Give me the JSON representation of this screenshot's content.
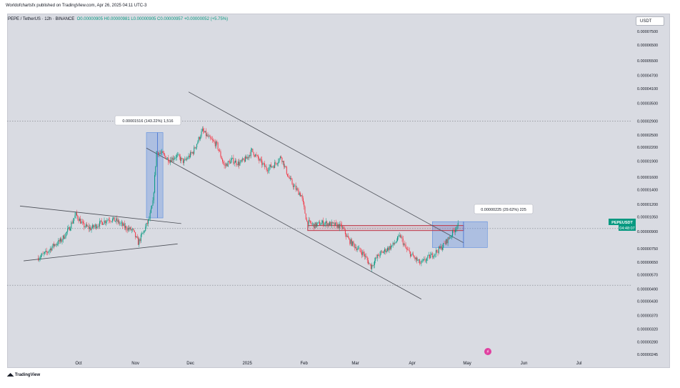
{
  "header": {
    "published": "Worldofchartsfx published on TradingView.com, Apr 26, 2025 04:11 UTC-3",
    "symbol": "PEPE / TetherUS · 12h · BINANCE",
    "ohlc": "O0.00000905 H0.00000981 L0.00000905 C0.00000957 +0.00000052 (+5.75%)"
  },
  "currency_button": "USDT",
  "footer": {
    "logo_text": "TradingView"
  },
  "colors": {
    "up": "#089981",
    "down": "#f23645",
    "background": "#d9dbe2",
    "accent": "#089981"
  },
  "chart_data": {
    "type": "candlestick",
    "symbol": "PEPEUSDT",
    "timeframe": "12h",
    "exchange": "BINANCE",
    "y_scale": "log",
    "y_ticks": [
      "0.00007500",
      "0.00006500",
      "0.00005500",
      "0.00004700",
      "0.00004100",
      "0.00003500",
      "0.00002900",
      "0.00002500",
      "0.00002200",
      "0.00001900",
      "0.00001600",
      "0.00001400",
      "0.00001200",
      "0.00001050",
      "0.00000900",
      "0.00000750",
      "0.00000650",
      "0.00000570",
      "0.00000490",
      "0.00000430",
      "0.00000370",
      "0.00000320",
      "0.00000280",
      "0.00000245"
    ],
    "x_ticks": [
      "Oct",
      "Nov",
      "Dec",
      "2025",
      "Feb",
      "Mar",
      "Apr",
      "May",
      "Jun",
      "Jul"
    ],
    "last_price_label": "PEPEUSDT",
    "countdown_label": "04:48:07",
    "annotations": [
      {
        "text": "0.00001516 (143.22%) 1,516",
        "type": "price-range"
      },
      {
        "text": "0.00000225 (29.62%) 225",
        "type": "price-range"
      }
    ],
    "path": [
      [
        "2024-09-09",
        6.8e-06
      ],
      [
        "2024-09-14",
        7.2e-06
      ],
      [
        "2024-09-18",
        7.8e-06
      ],
      [
        "2024-09-22",
        8.2e-06
      ],
      [
        "2024-09-26",
        9.2e-06
      ],
      [
        "2024-09-30",
        1.08e-05
      ],
      [
        "2024-10-04",
        9.6e-06
      ],
      [
        "2024-10-08",
        9.3e-06
      ],
      [
        "2024-10-13",
        9.8e-06
      ],
      [
        "2024-10-18",
        1.03e-05
      ],
      [
        "2024-10-22",
        1.01e-05
      ],
      [
        "2024-10-27",
        9.4e-06
      ],
      [
        "2024-10-31",
        9.1e-06
      ],
      [
        "2024-11-03",
        8e-06
      ],
      [
        "2024-11-06",
        9e-06
      ],
      [
        "2024-11-09",
        1.03e-05
      ],
      [
        "2024-11-11",
        1.22e-05
      ],
      [
        "2024-11-13",
        2.1e-05
      ],
      [
        "2024-11-16",
        2.05e-05
      ],
      [
        "2024-11-20",
        1.92e-05
      ],
      [
        "2024-11-24",
        2.01e-05
      ],
      [
        "2024-11-28",
        1.88e-05
      ],
      [
        "2024-12-03",
        2.1e-05
      ],
      [
        "2024-12-08",
        2.62e-05
      ],
      [
        "2024-12-12",
        2.4e-05
      ],
      [
        "2024-12-16",
        2.25e-05
      ],
      [
        "2024-12-20",
        1.8e-05
      ],
      [
        "2024-12-24",
        1.92e-05
      ],
      [
        "2024-12-28",
        1.85e-05
      ],
      [
        "2025-01-01",
        1.95e-05
      ],
      [
        "2025-01-04",
        2.12e-05
      ],
      [
        "2025-01-08",
        1.92e-05
      ],
      [
        "2025-01-12",
        1.75e-05
      ],
      [
        "2025-01-16",
        1.82e-05
      ],
      [
        "2025-01-20",
        1.99e-05
      ],
      [
        "2025-01-24",
        1.6e-05
      ],
      [
        "2025-01-27",
        1.45e-05
      ],
      [
        "2025-01-31",
        1.32e-05
      ],
      [
        "2025-02-03",
        1e-05
      ],
      [
        "2025-02-07",
        9.6e-06
      ],
      [
        "2025-02-12",
        9.9e-06
      ],
      [
        "2025-02-17",
        9.7e-06
      ],
      [
        "2025-02-22",
        9.5e-06
      ],
      [
        "2025-02-26",
        8.2e-06
      ],
      [
        "2025-03-02",
        7.6e-06
      ],
      [
        "2025-03-06",
        7.1e-06
      ],
      [
        "2025-03-10",
        6.2e-06
      ],
      [
        "2025-03-14",
        7e-06
      ],
      [
        "2025-03-18",
        7.4e-06
      ],
      [
        "2025-03-22",
        7.8e-06
      ],
      [
        "2025-03-26",
        8.6e-06
      ],
      [
        "2025-03-29",
        7.5e-06
      ],
      [
        "2025-04-02",
        6.9e-06
      ],
      [
        "2025-04-06",
        6.4e-06
      ],
      [
        "2025-04-10",
        6.8e-06
      ],
      [
        "2025-04-14",
        7.2e-06
      ],
      [
        "2025-04-18",
        7.7e-06
      ],
      [
        "2025-04-22",
        8.5e-06
      ],
      [
        "2025-04-26",
        9.6e-06
      ]
    ],
    "boxes": [
      {
        "name": "range-box-nov",
        "x": [
          "2024-11-07",
          "2024-11-16"
        ],
        "y": [
          1.04e-05,
          2.57e-05
        ],
        "color": "#5b8de0"
      },
      {
        "name": "range-box-apr",
        "x": [
          "2025-04-12",
          "2025-05-12"
        ],
        "y": [
          7.6e-06,
          1e-05
        ],
        "color": "#5b8de0"
      },
      {
        "name": "resistance-zone",
        "x": [
          "2025-02-03",
          "2025-04-29"
        ],
        "y": [
          9.1e-06,
          9.6e-06
        ],
        "color": "#c0394a"
      }
    ],
    "lines": [
      {
        "name": "channel-upper-line",
        "from": [
          "2024-11-30",
          3.95e-05
        ],
        "to": [
          "2025-04-29",
          8e-06
        ]
      },
      {
        "name": "channel-lower-line",
        "from": [
          "2024-11-07",
          2.18e-05
        ],
        "to": [
          "2025-04-06",
          4.4e-06
        ]
      },
      {
        "name": "triangle-upper-line",
        "from": [
          "2024-08-30",
          1.18e-05
        ],
        "to": [
          "2024-11-26",
          9.8e-06
        ]
      },
      {
        "name": "triangle-lower-line",
        "from": [
          "2024-09-01",
          6.6e-06
        ],
        "to": [
          "2024-11-24",
          7.9e-06
        ]
      }
    ],
    "h_lines": [
      2.9e-05,
      9.3e-06,
      5.1e-06
    ]
  }
}
